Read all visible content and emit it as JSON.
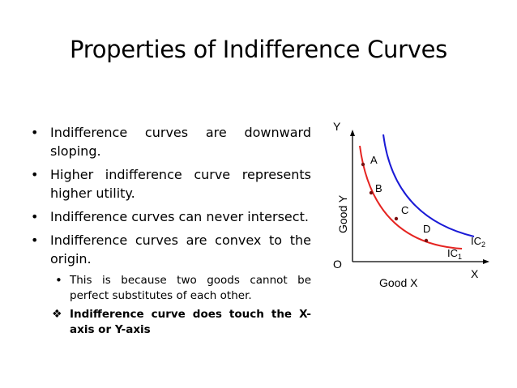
{
  "slide": {
    "title": "Properties of Indifference Curves"
  },
  "bullets": [
    {
      "text": "Indifference curves are downward sloping."
    },
    {
      "text": "Higher indifference curve represents higher utility."
    },
    {
      "text": "Indifference curves can never intersect."
    },
    {
      "text": "Indifference curves are convex to the origin."
    }
  ],
  "subbullets": [
    {
      "text": "This is because two goods cannot be perfect substitutes of each other.",
      "marker": "•"
    },
    {
      "text": "Indifference curve does touch the X-axis or Y-axis",
      "marker": "❖"
    }
  ],
  "diagram": {
    "y_axis_letter": "Y",
    "x_axis_letter": "X",
    "origin_label": "O",
    "y_axis_title": "Good Y",
    "x_axis_title": "Good X",
    "curves": [
      {
        "label": "IC",
        "sub": "1",
        "color": "#e52421"
      },
      {
        "label": "IC",
        "sub": "2",
        "color": "#1a1ad6"
      }
    ],
    "points": [
      {
        "label": "A"
      },
      {
        "label": "B"
      },
      {
        "label": "C"
      },
      {
        "label": "D"
      }
    ]
  }
}
